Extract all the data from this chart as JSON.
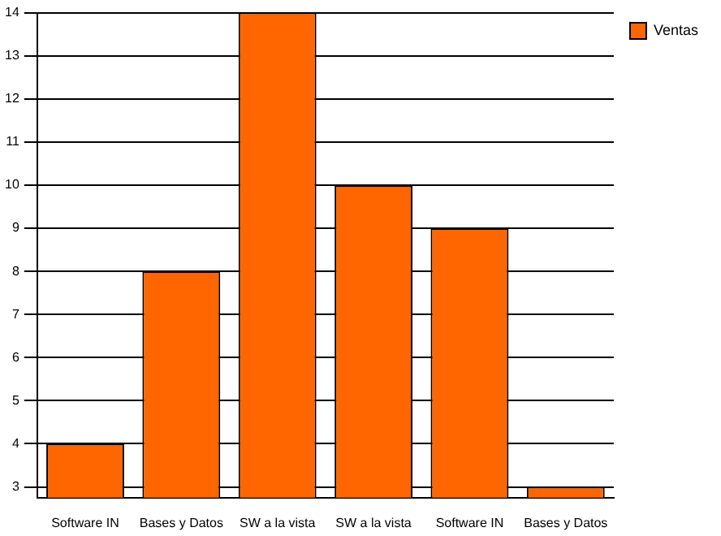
{
  "chart_data": {
    "type": "bar",
    "categories": [
      "Software IN",
      "Bases y Datos",
      "SW a la vista",
      "SW a la vista",
      "Software IN",
      "Bases y Datos"
    ],
    "series": [
      {
        "name": "Ventas",
        "color": "#ff6600",
        "values": [
          4,
          8,
          14,
          10,
          9,
          3
        ]
      }
    ],
    "ylim": [
      2.75,
      14
    ],
    "yticks": [
      3,
      4,
      5,
      6,
      7,
      8,
      9,
      10,
      11,
      12,
      13,
      14
    ],
    "grid": "y",
    "legend": "top right"
  }
}
